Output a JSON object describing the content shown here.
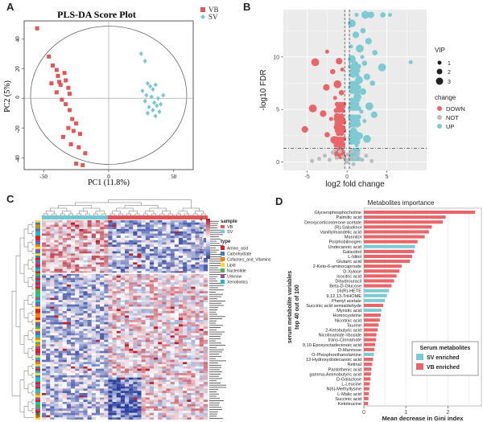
{
  "panels": {
    "a": {
      "label": "A"
    },
    "b": {
      "label": "B"
    },
    "c": {
      "label": "C"
    },
    "d": {
      "label": "D"
    }
  },
  "chart_data": [
    {
      "type": "scatter",
      "panel": "A",
      "title": "PLS-DA Score Plot",
      "xlabel": "PC1 (11.8%)",
      "ylabel": "PC2 (5%)",
      "xlim": [
        -65,
        65
      ],
      "ylim": [
        -48,
        52
      ],
      "xticks": [
        "-50",
        "0",
        "50"
      ],
      "yticks": [
        "-40",
        "-20",
        "0",
        "20",
        "40"
      ],
      "legend": [
        {
          "name": "VB",
          "color": "#e15759",
          "marker": "square"
        },
        {
          "name": "SV",
          "color": "#76c7d1",
          "marker": "diamond"
        }
      ],
      "series": [
        {
          "name": "VB",
          "points": [
            [
              -55,
              47
            ],
            [
              -46,
              28
            ],
            [
              -44,
              10
            ],
            [
              -43,
              22
            ],
            [
              -40,
              19
            ],
            [
              -39,
              15
            ],
            [
              -38,
              11
            ],
            [
              -37,
              9
            ],
            [
              -40,
              4
            ],
            [
              -34,
              17
            ],
            [
              -33,
              12
            ],
            [
              -31,
              7
            ],
            [
              -30,
              3
            ],
            [
              -36,
              -1
            ],
            [
              -33,
              -4
            ],
            [
              -30,
              -8
            ],
            [
              -28,
              -14
            ],
            [
              -25,
              -17
            ],
            [
              -31,
              -20
            ],
            [
              -27,
              -22
            ],
            [
              -22,
              -24
            ],
            [
              -35,
              -26
            ],
            [
              -29,
              -31
            ],
            [
              -23,
              -33
            ],
            [
              -18,
              -37
            ],
            [
              -25,
              -44
            ],
            [
              -20,
              -45
            ]
          ]
        },
        {
          "name": "SV",
          "points": [
            [
              25,
              30
            ],
            [
              28,
              25
            ],
            [
              30,
              10
            ],
            [
              32,
              8
            ],
            [
              34,
              6
            ],
            [
              36,
              9
            ],
            [
              26,
              5
            ],
            [
              29,
              2
            ],
            [
              33,
              1
            ],
            [
              38,
              0
            ],
            [
              35,
              -3
            ],
            [
              37,
              -5
            ],
            [
              40,
              -4
            ],
            [
              31,
              -6
            ],
            [
              34,
              -8
            ],
            [
              36,
              -12
            ],
            [
              39,
              -9
            ],
            [
              28,
              -2
            ],
            [
              42,
              2
            ],
            [
              30,
              -10
            ]
          ]
        }
      ]
    },
    {
      "type": "scatter",
      "panel": "B",
      "xlabel": "log2 fold change",
      "ylabel": "-log10 FDR",
      "xlim": [
        -8,
        10
      ],
      "ylim": [
        -0.8,
        14.5
      ],
      "xticks": [
        "-5",
        "0",
        "5"
      ],
      "yticks": [
        "0",
        "5",
        "10"
      ],
      "threshold_fdr": 1.3,
      "threshold_fc": [
        -0.3,
        0.3
      ],
      "legend_vip_title": "VIP",
      "legend_vip": [
        "1",
        "2",
        "3"
      ],
      "legend_change_title": "change",
      "legend_change": [
        {
          "name": "DOWN",
          "color": "#e8666a"
        },
        {
          "name": "NOT",
          "color": "#bdbdbd"
        },
        {
          "name": "UP",
          "color": "#7ecad3"
        }
      ],
      "series": [
        {
          "name": "UP",
          "points": [
            [
              1.2,
              14
            ],
            [
              2.3,
              14
            ],
            [
              3.0,
              14
            ],
            [
              4.5,
              14
            ],
            [
              5.4,
              14
            ],
            [
              0.6,
              13.2
            ],
            [
              1.1,
              12.1
            ],
            [
              2.0,
              12.5
            ],
            [
              0.5,
              11.0
            ],
            [
              1.6,
              10.8
            ],
            [
              2.7,
              11.5
            ],
            [
              3.5,
              10.4
            ],
            [
              8.0,
              9.5
            ],
            [
              4.4,
              9.0
            ],
            [
              1.0,
              9.3
            ],
            [
              2.2,
              9.4
            ],
            [
              0.8,
              8.2
            ],
            [
              1.5,
              7.8
            ],
            [
              2.5,
              8.1
            ],
            [
              3.2,
              7.5
            ],
            [
              0.7,
              6.8
            ],
            [
              1.3,
              6.2
            ],
            [
              2.0,
              6.7
            ],
            [
              1.0,
              5.2
            ],
            [
              1.8,
              4.8
            ],
            [
              2.8,
              5.3
            ],
            [
              0.6,
              4.1
            ],
            [
              1.4,
              3.6
            ],
            [
              2.2,
              3.9
            ],
            [
              0.8,
              2.9
            ],
            [
              1.6,
              2.5
            ],
            [
              0.5,
              1.9
            ],
            [
              1.2,
              1.6
            ],
            [
              2.5,
              2.2
            ],
            [
              3.4,
              4.5
            ],
            [
              0.9,
              7.4
            ],
            [
              1.9,
              10.0
            ],
            [
              0.6,
              9.8
            ]
          ]
        },
        {
          "name": "DOWN",
          "points": [
            [
              -2.5,
              10.5
            ],
            [
              -4.0,
              9.5
            ],
            [
              -1.0,
              9.6
            ],
            [
              -1.8,
              8.6
            ],
            [
              -0.6,
              8.8
            ],
            [
              -1.2,
              7.4
            ],
            [
              -2.6,
              7.1
            ],
            [
              -0.7,
              6.6
            ],
            [
              -1.5,
              6.1
            ],
            [
              -4.3,
              5.1
            ],
            [
              -3.0,
              4.6
            ],
            [
              -0.8,
              5.1
            ],
            [
              -2.0,
              4.1
            ],
            [
              -1.1,
              3.6
            ],
            [
              -5.3,
              3.1
            ],
            [
              -2.5,
              2.6
            ],
            [
              -0.7,
              2.7
            ],
            [
              -1.6,
              2.1
            ],
            [
              -0.9,
              1.6
            ],
            [
              -1.3,
              4.4
            ]
          ]
        },
        {
          "name": "NOT",
          "points": [
            [
              -3.5,
              0.3
            ],
            [
              -2.8,
              0.6
            ],
            [
              -2.2,
              0.2
            ],
            [
              -1.8,
              0.9
            ],
            [
              -1.3,
              0.4
            ],
            [
              -0.9,
              1.0
            ],
            [
              -0.5,
              0.5
            ],
            [
              -0.2,
              0.2
            ],
            [
              0.1,
              0.7
            ],
            [
              0.3,
              0.3
            ],
            [
              0.6,
              1.0
            ],
            [
              1.0,
              0.4
            ],
            [
              1.4,
              0.8
            ],
            [
              1.9,
              0.2
            ],
            [
              2.4,
              0.6
            ],
            [
              3.1,
              0.1
            ],
            [
              -4.4,
              0.1
            ],
            [
              -1.5,
              1.2
            ],
            [
              0.0,
              0.0
            ],
            [
              0.8,
              -0.2
            ]
          ]
        }
      ]
    },
    {
      "type": "heatmap",
      "panel": "C",
      "legend_title": "sample",
      "legend_items": [
        {
          "name": "VB",
          "color": "#e15759"
        },
        {
          "name": "SV",
          "color": "#76c7d1"
        }
      ],
      "scale_ticks": [
        "4",
        "2",
        "0",
        "-2",
        "-4"
      ],
      "type_legend_title": "type",
      "type_legend": [
        {
          "name": "Amino_acid",
          "color": "#e41a1c"
        },
        {
          "name": "Carbohydrate",
          "color": "#377eb8"
        },
        {
          "name": "Cofactors_and_Vitamins",
          "color": "#ff7f00"
        },
        {
          "name": "Lipid",
          "color": "#ffd92f"
        },
        {
          "name": "Nucleotide",
          "color": "#4daf4a"
        },
        {
          "name": "Unknow",
          "color": "#984ea3"
        },
        {
          "name": "Xenobiotics",
          "color": "#17becf"
        }
      ],
      "side_label": "type"
    },
    {
      "type": "bar",
      "panel": "D",
      "title": "Metabolites importance",
      "xlabel": "Mean decrease in Gini index",
      "ylabel_lines": [
        "serum metabolite variables",
        "top 40 out of 100"
      ],
      "xlim": [
        0,
        2.8
      ],
      "xticks": [
        "0",
        "1",
        "2"
      ],
      "legend_title": "Serum metabolites",
      "legend": [
        {
          "name": "SV enriched",
          "color": "#7ecad3"
        },
        {
          "name": "VB enriched",
          "color": "#e8666a"
        }
      ],
      "categories": [
        "Glycerophosphocholine",
        "Palmitic acid",
        "Deoxycorticosterone acetate",
        "(R)-Salsolinol",
        "Vanillylmandelic acid",
        "Mannitol",
        "Porphobilinogen",
        "Undecanoic acid",
        "Galactitol",
        "L-Iditol",
        "Glutaric acid",
        "2-Keto-6-aminocaproate",
        "D-Xylose",
        "Isocitric acid",
        "Dihydrouracil",
        "Beta-D-Glucose",
        "16(R)-HETE",
        "9,12,13-TriHOME",
        "Phenyl acetate",
        "Succinic acid semialdehyde",
        "Myristic acid",
        "Homocysteine",
        "Nicotinic acid",
        "Taurine",
        "2-Ketobutyric acid",
        "Nicotinamide riboside",
        "trans-Cinnamate",
        "9,10-Epoxyoctadecenoic acid",
        "D-Mannose",
        "O-Phosphoethanolamine",
        "12-Hydroxydodecanoic acid",
        "Retinal",
        "Pantothenic acid",
        "gamma-Aminobutyric acid",
        "D-Galactose",
        "L-Leucine",
        "N(6)-Methyllysine",
        "L-Malic acid",
        "Succinic acid",
        "Ketoleucine"
      ],
      "series": [
        {
          "name": "value",
          "values": [
            2.65,
            1.95,
            1.88,
            1.62,
            1.55,
            1.45,
            1.28,
            1.22,
            1.2,
            1.15,
            1.1,
            0.9,
            0.85,
            0.78,
            0.72,
            0.66,
            0.6,
            0.55,
            0.5,
            0.46,
            0.42,
            0.4,
            0.38,
            0.35,
            0.33,
            0.3,
            0.29,
            0.27,
            0.25,
            0.24,
            0.22,
            0.2,
            0.18,
            0.17,
            0.16,
            0.14,
            0.13,
            0.12,
            0.11,
            0.1
          ]
        },
        {
          "name": "group",
          "values": [
            "VB",
            "VB",
            "VB",
            "VB",
            "VB",
            "VB",
            "VB",
            "SV",
            "VB",
            "VB",
            "VB",
            "VB",
            "VB",
            "VB",
            "VB",
            "VB",
            "SV",
            "SV",
            "SV",
            "VB",
            "SV",
            "VB",
            "VB",
            "VB",
            "VB",
            "VB",
            "VB",
            "VB",
            "VB",
            "SV",
            "VB",
            "VB",
            "VB",
            "VB",
            "VB",
            "VB",
            "VB",
            "VB",
            "VB",
            "VB"
          ]
        }
      ]
    }
  ]
}
